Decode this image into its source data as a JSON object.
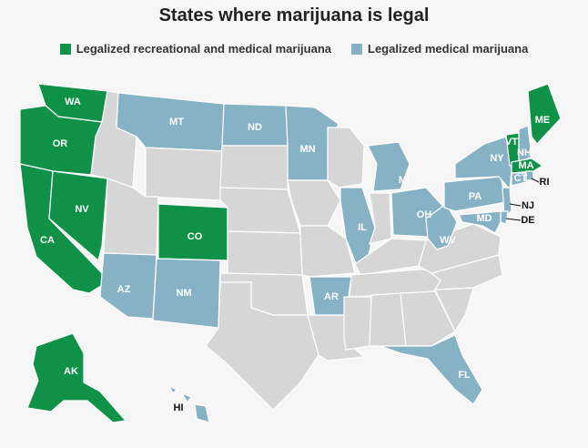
{
  "title": "States where marijuana is legal",
  "legend": [
    {
      "label": "Legalized recreational and medical marijuana",
      "color": "#0f9148"
    },
    {
      "label": "Legalized medical marijuana",
      "color": "#87b1c4"
    }
  ],
  "colors": {
    "recreational": "#0f9148",
    "medical": "#87b1c4",
    "none": "#d6d6d6",
    "background": "#f6f6f6"
  },
  "state_labels": {
    "WA": "WA",
    "OR": "OR",
    "CA": "CA",
    "NV": "NV",
    "CO": "CO",
    "AK": "AK",
    "MT": "MT",
    "ND": "ND",
    "MN": "MN",
    "AZ": "AZ",
    "NM": "NM",
    "AR": "AR",
    "IL": "IL",
    "MI": "MI",
    "OH": "OH",
    "WV": "WV",
    "PA": "PA",
    "NY": "NY",
    "VT": "VT",
    "NH": "NH",
    "ME": "ME",
    "MA": "MA",
    "CT": "CT",
    "RI": "RI",
    "NJ": "NJ",
    "DE": "DE",
    "MD": "MD",
    "FL": "FL",
    "HI": "HI"
  },
  "chart_data": {
    "type": "choropleth",
    "recreational_and_medical": [
      "WA",
      "OR",
      "CA",
      "NV",
      "CO",
      "AK",
      "VT",
      "ME",
      "MA"
    ],
    "medical_only": [
      "MT",
      "ND",
      "MN",
      "AZ",
      "NM",
      "AR",
      "IL",
      "MI",
      "OH",
      "WV",
      "PA",
      "NY",
      "NH",
      "CT",
      "RI",
      "NJ",
      "DE",
      "MD",
      "FL",
      "HI"
    ]
  }
}
